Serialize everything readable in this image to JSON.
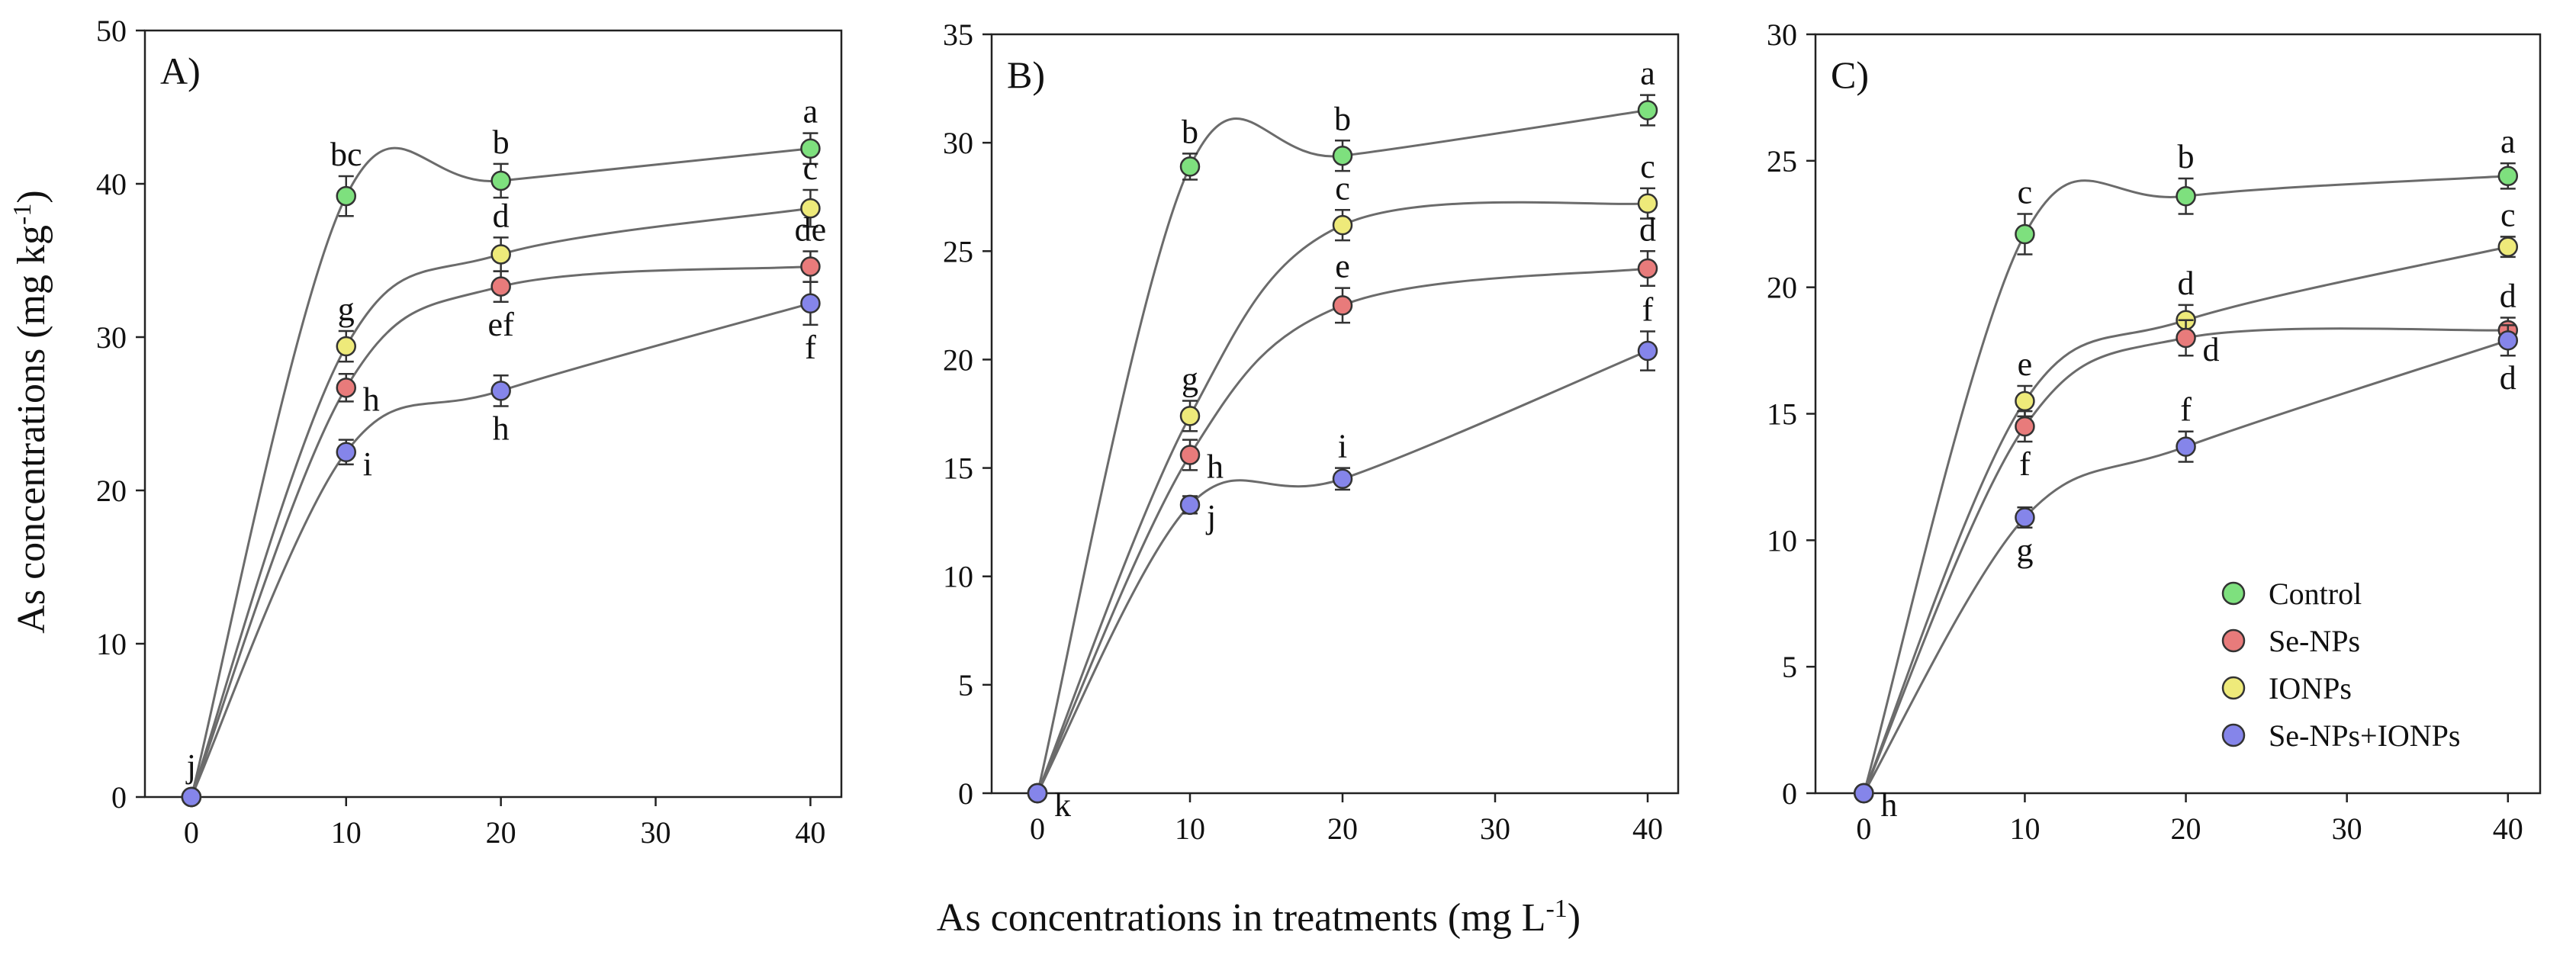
{
  "figure": {
    "xlabel": "As concentrations in treatments (mg L",
    "xlabel_sup": "-1",
    "xlabel_end": ")",
    "ylabel": "As concentrations (mg kg",
    "ylabel_sup": "-1",
    "ylabel_end": ")"
  },
  "legend": {
    "items": [
      {
        "label": "Control",
        "color": "#7ee07e"
      },
      {
        "label": "Se-NPs",
        "color": "#e87b7b"
      },
      {
        "label": "IONPs",
        "color": "#eeea7a"
      },
      {
        "label": "Se-NPs+IONPs",
        "color": "#8585ea"
      }
    ]
  },
  "chart_data": [
    {
      "type": "scatter",
      "panel": "A)",
      "x": [
        0,
        10,
        20,
        40
      ],
      "xticks": [
        "0",
        "10",
        "20",
        "30",
        "40"
      ],
      "xlim": [
        -3,
        42
      ],
      "ylim": [
        0,
        50
      ],
      "yticks": [
        "0",
        "10",
        "20",
        "30",
        "40",
        "50"
      ],
      "series": [
        {
          "name": "Control",
          "values": [
            0,
            39.2,
            40.2,
            42.3
          ],
          "errors": [
            0.3,
            1.3,
            1.1,
            1.0
          ],
          "letters": [
            "",
            "bc",
            "b",
            "a"
          ],
          "letter_pos": [
            "",
            "above",
            "above",
            "above"
          ]
        },
        {
          "name": "IONPs",
          "values": [
            0,
            29.4,
            35.4,
            38.4
          ],
          "errors": [
            0.3,
            1.0,
            1.1,
            1.2
          ],
          "letters": [
            "",
            "g",
            "d",
            "c"
          ],
          "letter_pos": [
            "",
            "above",
            "above",
            "above"
          ]
        },
        {
          "name": "Se-NPs",
          "values": [
            0,
            26.7,
            33.3,
            34.6
          ],
          "errors": [
            0.3,
            0.9,
            1.0,
            1.0
          ],
          "letters": [
            "",
            "h",
            "ef",
            "de"
          ],
          "letter_pos": [
            "",
            "right",
            "below",
            "above"
          ]
        },
        {
          "name": "Se-NPs+IONPs",
          "values": [
            0,
            22.5,
            26.5,
            32.2
          ],
          "errors": [
            0.3,
            0.8,
            1.0,
            1.4
          ],
          "letters": [
            "j",
            "i",
            "h",
            "f"
          ],
          "letter_pos": [
            "above",
            "right",
            "below",
            "below"
          ]
        }
      ]
    },
    {
      "type": "scatter",
      "panel": "B)",
      "x": [
        0,
        10,
        20,
        40
      ],
      "xticks": [
        "0",
        "10",
        "20",
        "30",
        "40"
      ],
      "xlim": [
        -3,
        42
      ],
      "ylim": [
        0,
        35
      ],
      "yticks": [
        "0",
        "5",
        "10",
        "15",
        "20",
        "25",
        "30",
        "35"
      ],
      "series": [
        {
          "name": "Control",
          "values": [
            0,
            28.9,
            29.4,
            31.5
          ],
          "errors": [
            0.2,
            0.6,
            0.7,
            0.7
          ],
          "letters": [
            "",
            "b",
            "b",
            "a"
          ],
          "letter_pos": [
            "",
            "above",
            "above",
            "above"
          ]
        },
        {
          "name": "IONPs",
          "values": [
            0,
            17.4,
            26.2,
            27.2
          ],
          "errors": [
            0.2,
            0.7,
            0.7,
            0.7
          ],
          "letters": [
            "",
            "g",
            "c",
            "c"
          ],
          "letter_pos": [
            "",
            "above",
            "above",
            "above"
          ]
        },
        {
          "name": "Se-NPs",
          "values": [
            0,
            15.6,
            22.5,
            24.2
          ],
          "errors": [
            0.2,
            0.7,
            0.8,
            0.8
          ],
          "letters": [
            "",
            "h",
            "e",
            "d"
          ],
          "letter_pos": [
            "",
            "right",
            "above",
            "above"
          ]
        },
        {
          "name": "Se-NPs+IONPs",
          "values": [
            0,
            13.3,
            14.5,
            20.4
          ],
          "errors": [
            0.2,
            0.4,
            0.5,
            0.9
          ],
          "letters": [
            "k",
            "j",
            "i",
            "f"
          ],
          "letter_pos": [
            "right",
            "right",
            "above",
            "above"
          ]
        }
      ]
    },
    {
      "type": "scatter",
      "panel": "C)",
      "x": [
        0,
        10,
        20,
        40
      ],
      "xticks": [
        "0",
        "10",
        "20",
        "30",
        "40"
      ],
      "xlim": [
        -3,
        42
      ],
      "ylim": [
        0,
        30
      ],
      "yticks": [
        "0",
        "5",
        "10",
        "15",
        "20",
        "25",
        "30"
      ],
      "series": [
        {
          "name": "Control",
          "values": [
            0,
            22.1,
            23.6,
            24.4
          ],
          "errors": [
            0.2,
            0.8,
            0.7,
            0.5
          ],
          "letters": [
            "",
            "c",
            "b",
            "a"
          ],
          "letter_pos": [
            "",
            "above",
            "above",
            "above"
          ]
        },
        {
          "name": "IONPs",
          "values": [
            0,
            15.5,
            18.7,
            21.6
          ],
          "errors": [
            0.2,
            0.6,
            0.6,
            0.4
          ],
          "letters": [
            "",
            "e",
            "d",
            "c"
          ],
          "letter_pos": [
            "",
            "above",
            "above",
            "above"
          ]
        },
        {
          "name": "Se-NPs",
          "values": [
            0,
            14.5,
            18.0,
            18.3
          ],
          "errors": [
            0.2,
            0.6,
            0.7,
            0.5
          ],
          "letters": [
            "",
            "f",
            "d",
            "d"
          ],
          "letter_pos": [
            "",
            "below",
            "right",
            "above"
          ]
        },
        {
          "name": "Se-NPs+IONPs",
          "values": [
            0,
            10.9,
            13.7,
            17.9
          ],
          "errors": [
            0.2,
            0.4,
            0.6,
            0.6
          ],
          "letters": [
            "h",
            "g",
            "f",
            "d"
          ],
          "letter_pos": [
            "right",
            "below",
            "above",
            "below"
          ]
        }
      ]
    }
  ]
}
